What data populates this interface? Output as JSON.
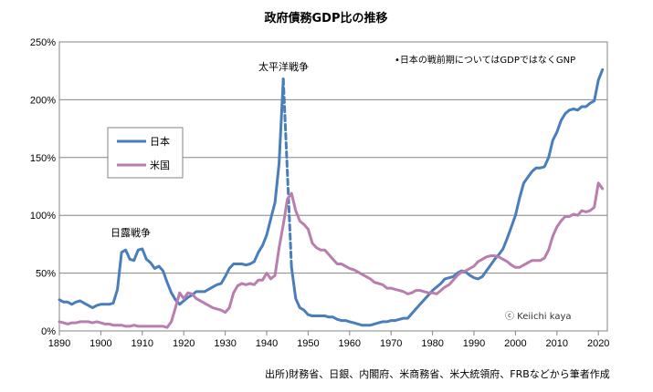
{
  "chart_data": {
    "type": "line",
    "title": "政府債務GDP比の推移",
    "xlabel": "",
    "ylabel": "",
    "xlim": [
      1890,
      2020
    ],
    "ylim": [
      0,
      250
    ],
    "x_ticks": [
      "1890",
      "1900",
      "1910",
      "1920",
      "1930",
      "1940",
      "1950",
      "1960",
      "1970",
      "1980",
      "1990",
      "2000",
      "2010",
      "2020"
    ],
    "y_ticks": [
      "0%",
      "50%",
      "100%",
      "150%",
      "200%",
      "250%"
    ],
    "grid": true,
    "legend_placement": "left-middle",
    "series": [
      {
        "name": "日本",
        "color": "#4a7ebb",
        "dashed_between": [
          1944,
          1946
        ],
        "start_year": 1890,
        "values": [
          27,
          25,
          25,
          23,
          25,
          26,
          24,
          22,
          20,
          22,
          23,
          23,
          23,
          24,
          36,
          68,
          70,
          62,
          61,
          70,
          71,
          62,
          59,
          54,
          56,
          52,
          42,
          33,
          27,
          23,
          26,
          29,
          31,
          34,
          34,
          34,
          36,
          38,
          40,
          41,
          47,
          54,
          58,
          58,
          58,
          57,
          58,
          60,
          68,
          74,
          83,
          97,
          111,
          145,
          218,
          null,
          55,
          28,
          20,
          18,
          14,
          13,
          13,
          13,
          13,
          12,
          12,
          10,
          9,
          9,
          8,
          7,
          6,
          5,
          5,
          5,
          6,
          7,
          8,
          8,
          9,
          9,
          10,
          11,
          11,
          15,
          19,
          23,
          27,
          31,
          35,
          38,
          41,
          45,
          46,
          47,
          50,
          52,
          51,
          48,
          46,
          45,
          47,
          52,
          57,
          62,
          66,
          71,
          80,
          90,
          100,
          115,
          128,
          133,
          138,
          141,
          141,
          142,
          150,
          165,
          172,
          182,
          188,
          191,
          192,
          191,
          194,
          194,
          197,
          199,
          217,
          226
        ]
      },
      {
        "name": "米国",
        "color": "#b87fae",
        "start_year": 1890,
        "values": [
          8,
          7,
          6,
          7,
          7,
          8,
          8,
          8,
          7,
          8,
          7,
          6,
          6,
          5,
          5,
          5,
          4,
          4,
          5,
          4,
          4,
          4,
          4,
          4,
          4,
          4,
          3,
          8,
          20,
          33,
          28,
          33,
          32,
          28,
          26,
          24,
          22,
          20,
          19,
          18,
          16,
          20,
          33,
          39,
          41,
          40,
          41,
          40,
          44,
          44,
          50,
          45,
          48,
          72,
          92,
          114,
          119,
          104,
          95,
          92,
          88,
          76,
          72,
          70,
          70,
          66,
          62,
          58,
          58,
          56,
          54,
          53,
          51,
          49,
          47,
          45,
          42,
          41,
          40,
          37,
          37,
          36,
          35,
          34,
          32,
          33,
          35,
          35,
          34,
          33,
          33,
          32,
          35,
          38,
          40,
          44,
          48,
          51,
          52,
          54,
          56,
          60,
          62,
          64,
          65,
          65,
          64,
          62,
          60,
          57,
          55,
          55,
          57,
          59,
          61,
          61,
          61,
          63,
          70,
          82,
          90,
          95,
          99,
          99,
          101,
          100,
          104,
          103,
          104,
          107,
          128,
          123
        ]
      }
    ],
    "annotations": {
      "russo_japanese_war": "日露戦争",
      "pacific_war": "太平洋戦争",
      "note": "•日本の戦前期についてはGDPではなくGNP",
      "copyright": "ⓒ Keiichi kaya"
    },
    "source": "出所)財務省、日銀、内閣府、米商務省、米大統領府、FRBなどから筆者作成"
  }
}
